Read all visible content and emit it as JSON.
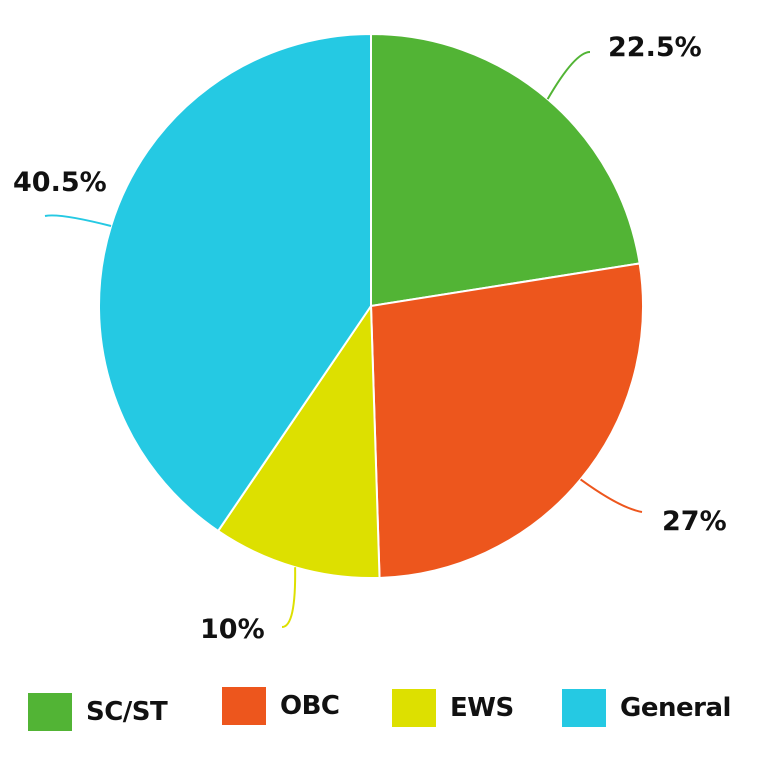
{
  "chart_data": {
    "type": "pie",
    "title": "",
    "categories": [
      "SC/ST",
      "OBC",
      "EWS",
      "General"
    ],
    "values": [
      22.5,
      27,
      10,
      40.5
    ],
    "labels": [
      "22.5%",
      "27%",
      "10%",
      "40.5%"
    ],
    "colors": [
      "#52b435",
      "#ed561d",
      "#dde000",
      "#25c9e3"
    ],
    "start_angle_deg": 0,
    "direction": "clockwise",
    "legend_position": "bottom"
  },
  "legend": {
    "items": [
      {
        "label": "SC/ST",
        "color": "#52b435"
      },
      {
        "label": "OBC",
        "color": "#ed561d"
      },
      {
        "label": "EWS",
        "color": "#dde000"
      },
      {
        "label": "General",
        "color": "#25c9e3"
      }
    ]
  }
}
